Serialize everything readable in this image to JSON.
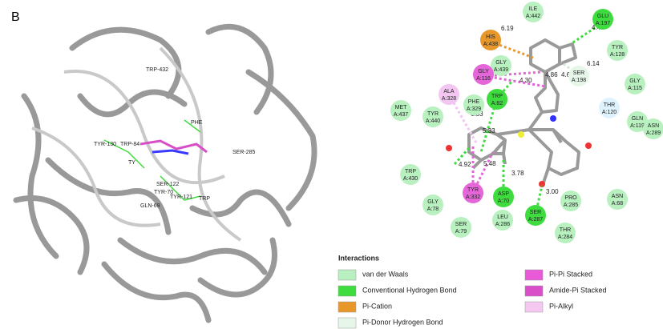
{
  "panel_label": "B",
  "structure_labels": [
    "TRP-432",
    "PHE",
    "TYR-130",
    "TRP-84",
    "SER-285",
    "TY",
    "SER-122",
    "TYR-70",
    "TYR-121",
    "GLN-69",
    "TRP"
  ],
  "residues": [
    {
      "name": "ILE",
      "id": "A:442",
      "color": "#b8f0c0"
    },
    {
      "name": "GLU",
      "id": "A:197",
      "color": "#3fdc3f"
    },
    {
      "name": "HIS",
      "id": "A:438",
      "color": "#e8972a"
    },
    {
      "name": "TYR",
      "id": "A:128",
      "color": "#b8f0c0"
    },
    {
      "name": "SER",
      "id": "A:198",
      "color": "#e6f7ea"
    },
    {
      "name": "GLY",
      "id": "A:439",
      "color": "#b8f0c0"
    },
    {
      "name": "GLY",
      "id": "A:116",
      "color": "#e466d8"
    },
    {
      "name": "GLY",
      "id": "A:115",
      "color": "#b8f0c0"
    },
    {
      "name": "ALA",
      "id": "A:328",
      "color": "#f2c6f0"
    },
    {
      "name": "TRP",
      "id": "A:82",
      "color": "#3fdc3f"
    },
    {
      "name": "THR",
      "id": "A:120",
      "color": "#dff3ff"
    },
    {
      "name": "PHE",
      "id": "A:329",
      "color": "#b8f0c0"
    },
    {
      "name": "MET",
      "id": "A:437",
      "color": "#b8f0c0"
    },
    {
      "name": "TYR",
      "id": "A:440",
      "color": "#b8f0c0"
    },
    {
      "name": "GLN",
      "id": "A:119",
      "color": "#b8f0c0"
    },
    {
      "name": "ASN",
      "id": "A:289",
      "color": "#b8f0c0"
    },
    {
      "name": "TRP",
      "id": "A:430",
      "color": "#b8f0c0"
    },
    {
      "name": "ASP",
      "id": "A:70",
      "color": "#3fdc3f"
    },
    {
      "name": "TYR",
      "id": "A:332",
      "color": "#e466d8"
    },
    {
      "name": "PRO",
      "id": "A:285",
      "color": "#b8f0c0"
    },
    {
      "name": "ASN",
      "id": "A:68",
      "color": "#b8f0c0"
    },
    {
      "name": "GLY",
      "id": "A:78",
      "color": "#b8f0c0"
    },
    {
      "name": "LEU",
      "id": "A:286",
      "color": "#b8f0c0"
    },
    {
      "name": "SER",
      "id": "A:287",
      "color": "#3fdc3f"
    },
    {
      "name": "SER",
      "id": "A:79",
      "color": "#b8f0c0"
    },
    {
      "name": "THR",
      "id": "A:284",
      "color": "#b8f0c0"
    }
  ],
  "distances": [
    "4.40",
    "6.19",
    "6.14",
    "4.86",
    "4.30",
    "4.64",
    "6.33",
    "5.33",
    "4.92",
    "5.48",
    "3.78",
    "3.00"
  ],
  "legend": {
    "title": "Interactions",
    "items": [
      {
        "label": "van der Waals",
        "color": "#b8f0c0"
      },
      {
        "label": "Conventional Hydrogen Bond",
        "color": "#3fdc3f"
      },
      {
        "label": "Pi-Cation",
        "color": "#e8972a"
      },
      {
        "label": "Pi-Donor Hydrogen Bond",
        "color": "#e6f7ea"
      },
      {
        "label": "Pi-Pi Stacked",
        "color": "#e85ad8"
      },
      {
        "label": "Amide-Pi Stacked",
        "color": "#d94fc8"
      },
      {
        "label": "Pi-Alkyl",
        "color": "#f5c8f2"
      }
    ]
  }
}
